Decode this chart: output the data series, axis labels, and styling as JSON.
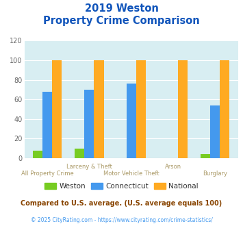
{
  "title_line1": "2019 Weston",
  "title_line2": "Property Crime Comparison",
  "categories": [
    "All Property Crime",
    "Larceny & Theft",
    "Motor Vehicle Theft",
    "Arson",
    "Burglary"
  ],
  "cat_row1": [
    "",
    "Larceny & Theft",
    "",
    "Arson",
    ""
  ],
  "cat_row2": [
    "All Property Crime",
    "",
    "Motor Vehicle Theft",
    "",
    "Burglary"
  ],
  "weston": [
    8,
    10,
    0,
    0,
    4
  ],
  "connecticut": [
    68,
    70,
    76,
    0,
    54
  ],
  "national": [
    100,
    100,
    100,
    100,
    100
  ],
  "weston_color": "#77cc22",
  "connecticut_color": "#4499ee",
  "national_color": "#ffaa22",
  "bg_color": "#d8eef2",
  "title_color": "#1155bb",
  "xlabel_color": "#aa9966",
  "yticklabel_color": "#666666",
  "ylim": [
    0,
    120
  ],
  "yticks": [
    0,
    20,
    40,
    60,
    80,
    100,
    120
  ],
  "legend_text_color": "#333333",
  "footnote1": "Compared to U.S. average. (U.S. average equals 100)",
  "footnote2": "© 2025 CityRating.com - https://www.cityrating.com/crime-statistics/",
  "footnote1_color": "#884400",
  "footnote2_color": "#4499ee",
  "bar_width": 0.23
}
